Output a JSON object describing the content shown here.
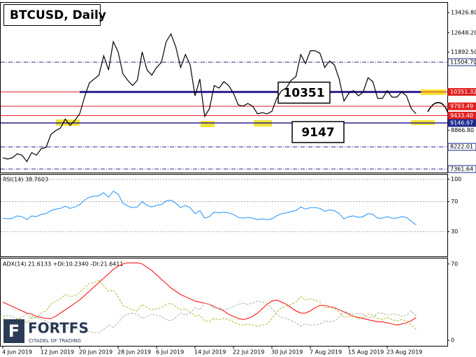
{
  "chart_data": {
    "type": "line",
    "title": "BTCUSD, Daily",
    "categories": [
      "4 Jun 2019",
      null,
      null,
      null,
      null,
      null,
      null,
      null,
      "12 Jun 2019",
      null,
      null,
      null,
      null,
      null,
      null,
      null,
      "20 Jun 2019",
      null,
      null,
      null,
      null,
      null,
      null,
      null,
      "28 Jun 2019",
      null,
      null,
      null,
      null,
      null,
      null,
      null,
      "6 Jul 2019",
      null,
      null,
      null,
      null,
      null,
      null,
      null,
      "14 Jul 2019",
      null,
      null,
      null,
      null,
      null,
      null,
      null,
      "22 Jul 2019",
      null,
      null,
      null,
      null,
      null,
      null,
      null,
      "30 Jul 2019",
      null,
      null,
      null,
      null,
      null,
      null,
      null,
      "7 Aug 2019",
      null,
      null,
      null,
      null,
      null,
      null,
      null,
      "15 Aug 2019",
      null,
      null,
      null,
      null,
      null,
      null,
      null,
      "23 Aug 2019",
      null,
      null,
      null,
      null,
      null,
      null
    ],
    "price": {
      "color": "#000000",
      "values": [
        7800,
        7750,
        7800,
        7950,
        7900,
        7650,
        8000,
        7900,
        8150,
        8200,
        8700,
        8850,
        8950,
        9300,
        9050,
        9250,
        9500,
        10150,
        10700,
        10850,
        11000,
        11750,
        11200,
        12300,
        11900,
        11050,
        10800,
        10600,
        10800,
        11900,
        11200,
        11000,
        11300,
        11500,
        12300,
        12600,
        12100,
        11300,
        11800,
        11400,
        10200,
        10850,
        9400,
        9700,
        10600,
        10500,
        10750,
        10600,
        10300,
        9850,
        9800,
        9900,
        9800,
        9500,
        9550,
        9500,
        9600,
        10100,
        10400,
        10500,
        10800,
        10950,
        11800,
        11450,
        11950,
        11950,
        11850,
        11300,
        11550,
        11400,
        10850,
        10000,
        10300,
        10400,
        10200,
        10350,
        10900,
        10750,
        10100,
        10100,
        10400,
        10150,
        10150,
        10350,
        10200,
        9700,
        9500
      ],
      "ylim": [
        7225,
        13807
      ],
      "yticks": [
        {
          "value": 13426.8,
          "label": "13426.80"
        },
        {
          "value": 12648.2,
          "label": "12648.20"
        },
        {
          "value": 11892.5,
          "label": "11892.50"
        },
        {
          "value": 8866.8,
          "label": "8866.80"
        }
      ],
      "levels": [
        {
          "value": 11504.7,
          "label": "11504.70",
          "color": "#1f2a8c",
          "style": "dashdot"
        },
        {
          "value": 10351.32,
          "label": "10351.32",
          "color": "#e02020",
          "style": "solid"
        },
        {
          "value": 9793.49,
          "label": "9793.49",
          "color": "#e02020",
          "style": "solid"
        },
        {
          "value": 9433.4,
          "label": "9433.40",
          "color": "#e02020",
          "style": "solid"
        },
        {
          "value": 9146.97,
          "label": "9146.97",
          "color": "#1f2a8c",
          "style": "solid"
        },
        {
          "value": 8222.01,
          "label": "8222.01",
          "color": "#1f2a8c",
          "style": "dashdot"
        },
        {
          "value": 7361.64,
          "label": "7361.64",
          "color": "#1f2a8c",
          "style": "dashdot"
        }
      ],
      "annotations": [
        10351,
        9147
      ]
    },
    "rsi": {
      "label": "RSI(14) 38.7603",
      "color": "#1e90ff",
      "grid": true,
      "values": [
        48,
        47,
        48,
        51,
        50,
        46,
        51,
        50,
        53,
        54,
        58,
        60,
        61,
        64,
        61,
        63,
        66,
        72,
        76,
        77,
        78,
        82,
        76,
        84,
        80,
        68,
        64,
        62,
        63,
        70,
        65,
        63,
        65,
        66,
        71,
        72,
        68,
        62,
        65,
        62,
        54,
        58,
        48,
        50,
        56,
        55,
        56,
        55,
        53,
        49,
        48,
        49,
        48,
        46,
        47,
        46,
        47,
        51,
        54,
        55,
        57,
        58,
        63,
        60,
        62,
        62,
        61,
        57,
        59,
        58,
        54,
        47,
        50,
        51,
        49,
        50,
        54,
        53,
        48,
        48,
        50,
        48,
        48,
        50,
        49,
        44,
        39
      ],
      "ylim": [
        -3,
        106
      ],
      "yticks": [
        30,
        70,
        100
      ]
    },
    "adx": {
      "label": "ADX(14) 21.6133 +DI:10.2340 -DI:21.6411",
      "ylim": [
        -5,
        75
      ],
      "yticks": [
        0,
        70
      ],
      "series": [
        {
          "color": "#ff0000",
          "dashed": false,
          "values": [
            35,
            33,
            31,
            29,
            27,
            25,
            24,
            22,
            21,
            20,
            20,
            22,
            25,
            28,
            31,
            34,
            37,
            41,
            45,
            49,
            53,
            57,
            61,
            65,
            68,
            70,
            71,
            71,
            71,
            70,
            67,
            64,
            60,
            56,
            52,
            48,
            45,
            42,
            40,
            38,
            36,
            35,
            34,
            33,
            31,
            29,
            27,
            24,
            22,
            20,
            19,
            20,
            22,
            25,
            29,
            33,
            36,
            37,
            35,
            33,
            30,
            27,
            25,
            25,
            27,
            30,
            32,
            32,
            31,
            30,
            28,
            26,
            24,
            22,
            21,
            20,
            19,
            18,
            17,
            17,
            16,
            15,
            14,
            15,
            16,
            18,
            21
          ]
        },
        {
          "color": "#b5b531",
          "dashed": true,
          "values": [
            20,
            18,
            17,
            20,
            19,
            16,
            22,
            21,
            25,
            27,
            33,
            36,
            38,
            42,
            40,
            41,
            44,
            48,
            52,
            53,
            55,
            50,
            45,
            46,
            40,
            32,
            30,
            28,
            27,
            33,
            30,
            28,
            29,
            30,
            33,
            34,
            31,
            28,
            29,
            26,
            22,
            23,
            18,
            17,
            20,
            19,
            20,
            19,
            17,
            15,
            14,
            15,
            14,
            13,
            14,
            15,
            20,
            26,
            30,
            31,
            33,
            35,
            40,
            37,
            38,
            37,
            35,
            30,
            30,
            29,
            26,
            21,
            22,
            22,
            20,
            21,
            24,
            23,
            20,
            19,
            21,
            19,
            18,
            19,
            18,
            14,
            10
          ]
        },
        {
          "color": "#9ab89a",
          "dashed": true,
          "values": [
            22,
            23,
            22,
            20,
            21,
            24,
            20,
            21,
            19,
            18,
            15,
            14,
            13,
            11,
            12,
            11,
            10,
            9,
            8,
            7,
            7,
            10,
            14,
            12,
            16,
            22,
            24,
            25,
            24,
            20,
            22,
            24,
            23,
            22,
            19,
            18,
            21,
            25,
            23,
            25,
            30,
            28,
            34,
            33,
            29,
            30,
            28,
            29,
            31,
            33,
            34,
            33,
            34,
            36,
            35,
            34,
            29,
            24,
            21,
            20,
            18,
            16,
            13,
            15,
            14,
            14,
            15,
            18,
            17,
            18,
            21,
            27,
            25,
            24,
            25,
            24,
            21,
            21,
            25,
            25,
            23,
            24,
            24,
            22,
            23,
            27,
            22
          ]
        }
      ]
    },
    "logo": {
      "name": "FORTFS",
      "tagline": "CITADEL OF TRADING"
    }
  }
}
